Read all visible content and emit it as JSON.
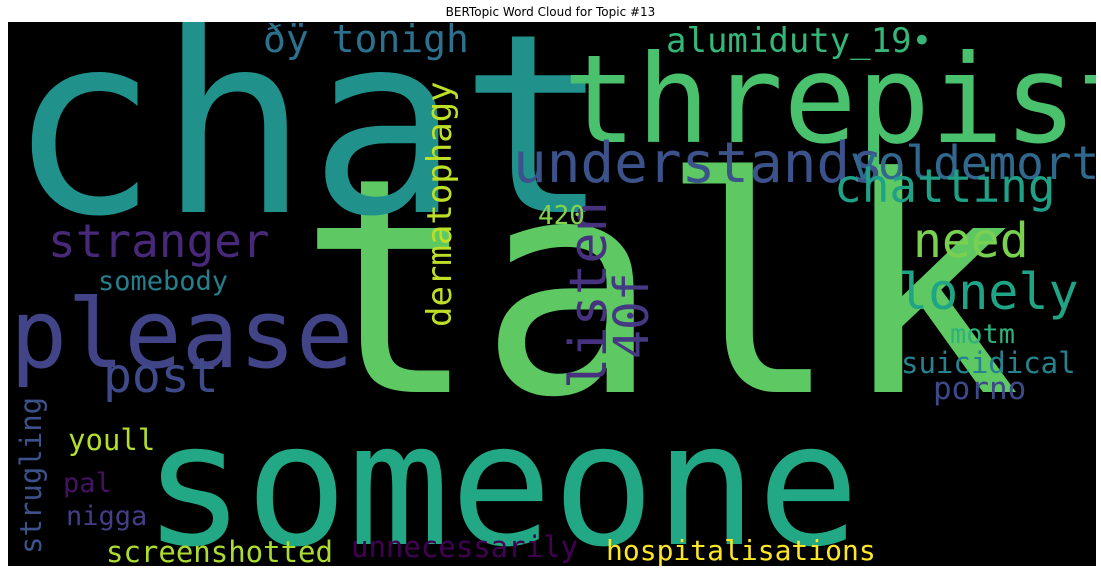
{
  "chart_data": {
    "type": "wordcloud",
    "title": "BERTopic Word Cloud for Topic #13",
    "background": "#000000",
    "words": [
      {
        "text": "talk",
        "weight": 1.0,
        "color": "#5ec962",
        "rotate": false
      },
      {
        "text": "chat",
        "weight": 0.84,
        "color": "#21918c",
        "rotate": false
      },
      {
        "text": "someone",
        "weight": 0.78,
        "color": "#22a884",
        "rotate": false
      },
      {
        "text": "threpist",
        "weight": 0.44,
        "color": "#4ac16d",
        "rotate": false
      },
      {
        "text": "please",
        "weight": 0.4,
        "color": "#414487",
        "rotate": false
      },
      {
        "text": "understands",
        "weight": 0.25,
        "color": "#3b528b",
        "rotate": false
      },
      {
        "text": "voldemort",
        "weight": 0.2,
        "color": "#31688e",
        "rotate": false
      },
      {
        "text": "chatting",
        "weight": 0.2,
        "color": "#1fa187",
        "rotate": false
      },
      {
        "text": "need",
        "weight": 0.2,
        "color": "#7ad151",
        "rotate": false
      },
      {
        "text": "lonely",
        "weight": 0.21,
        "color": "#20a486",
        "rotate": false
      },
      {
        "text": "post",
        "weight": 0.2,
        "color": "#3e4a89",
        "rotate": false
      },
      {
        "text": "stranger",
        "weight": 0.19,
        "color": "#482878",
        "rotate": false
      },
      {
        "text": "listen",
        "weight": 0.19,
        "color": "#46327e",
        "rotate": true
      },
      {
        "text": "40f",
        "weight": 0.18,
        "color": "#443983",
        "rotate": true
      },
      {
        "text": "ðÿ tonigh",
        "weight": 0.16,
        "color": "#2c728e",
        "rotate": false
      },
      {
        "text": "alumiduty_19•",
        "weight": 0.15,
        "color": "#35b779",
        "rotate": false
      },
      {
        "text": "dermatophagy",
        "weight": 0.15,
        "color": "#bddf26",
        "rotate": true
      },
      {
        "text": "hospitalisations",
        "weight": 0.13,
        "color": "#fde725",
        "rotate": false
      },
      {
        "text": "suicidical",
        "weight": 0.13,
        "color": "#26828e",
        "rotate": false
      },
      {
        "text": "porno",
        "weight": 0.13,
        "color": "#3e4989",
        "rotate": false
      },
      {
        "text": "screenshotted",
        "weight": 0.13,
        "color": "#addc30",
        "rotate": false
      },
      {
        "text": "unnecessarily",
        "weight": 0.13,
        "color": "#440154",
        "rotate": false
      },
      {
        "text": "somebody",
        "weight": 0.12,
        "color": "#277f8e",
        "rotate": false
      },
      {
        "text": "youll",
        "weight": 0.12,
        "color": "#b5de2b",
        "rotate": false
      },
      {
        "text": "strugling",
        "weight": 0.11,
        "color": "#3b528b",
        "rotate": true
      },
      {
        "text": "nigga",
        "weight": 0.11,
        "color": "#433e85",
        "rotate": false
      },
      {
        "text": "motm",
        "weight": 0.11,
        "color": "#2db27d",
        "rotate": false
      },
      {
        "text": "420",
        "weight": 0.11,
        "color": "#84d44b",
        "rotate": false
      },
      {
        "text": "pal",
        "weight": 0.11,
        "color": "#471164",
        "rotate": false
      }
    ]
  }
}
